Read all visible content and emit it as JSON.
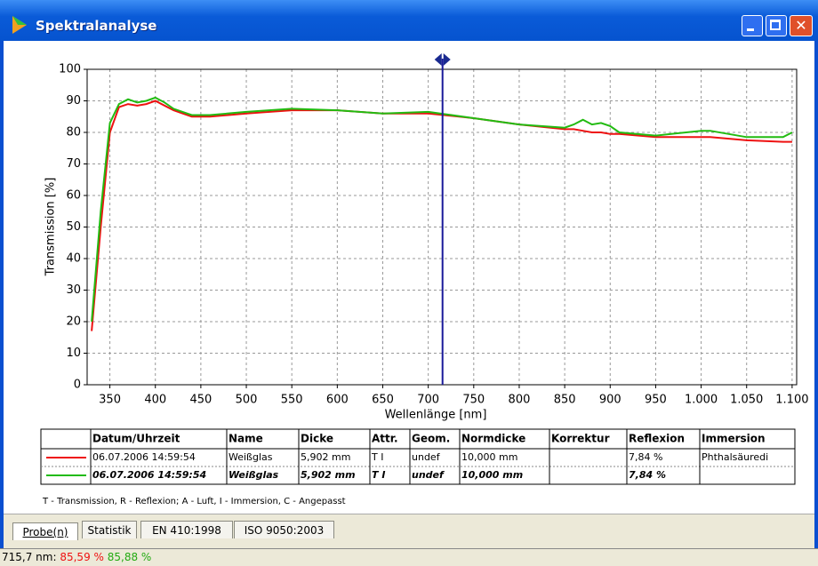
{
  "window": {
    "title": "Spektralanalyse"
  },
  "chart_data": {
    "type": "line",
    "ylabel": "Transmission [%]",
    "xlabel": "Wellenlänge [nm]",
    "x": [
      330,
      340,
      350,
      360,
      370,
      380,
      390,
      400,
      410,
      420,
      440,
      460,
      500,
      550,
      600,
      650,
      700,
      750,
      800,
      850,
      860,
      870,
      880,
      890,
      900,
      910,
      950,
      1000,
      1010,
      1050,
      1090,
      1100
    ],
    "series": [
      {
        "color": "#ee1111",
        "values": [
          17,
          50,
          80,
          88,
          89,
          88.5,
          89,
          90,
          88.5,
          87,
          85,
          85,
          86,
          87,
          87,
          86,
          86,
          84.5,
          82.5,
          81,
          81,
          80.5,
          80,
          80,
          79.5,
          79.5,
          78.5,
          78.5,
          78.5,
          77.5,
          77,
          77
        ]
      },
      {
        "color": "#22bb11",
        "values": [
          20,
          55,
          83,
          89,
          90.5,
          89.5,
          90,
          91,
          89.5,
          87.5,
          85.5,
          85.5,
          86.5,
          87.5,
          87,
          86,
          86.5,
          84.5,
          82.5,
          81.5,
          82.5,
          84,
          82.5,
          83,
          82,
          80,
          79,
          80.5,
          80.5,
          78.5,
          78.5,
          80
        ]
      }
    ],
    "xlim": [
      325,
      1105
    ],
    "ylim": [
      0,
      100
    ],
    "xticks": [
      350,
      400,
      450,
      500,
      550,
      600,
      650,
      700,
      750,
      800,
      850,
      900,
      950,
      {
        "value": 1000,
        "label": "1.000"
      },
      {
        "value": 1050,
        "label": "1.050"
      },
      {
        "value": 1100,
        "label": "1.100"
      }
    ],
    "yticks": [
      0,
      10,
      20,
      30,
      40,
      50,
      60,
      70,
      80,
      90,
      100
    ],
    "grid": true,
    "cursor_x": 715.7
  },
  "table": {
    "header": [
      "Datum/Uhrzeit",
      "Name",
      "Dicke",
      "Attr.",
      "Geom.",
      "Normdicke",
      "Korrektur",
      "Reflexion",
      "Immersion"
    ],
    "rows": [
      [
        "06.07.2006 14:59:54",
        "Weißglas",
        "5,902 mm",
        "T I",
        "undef",
        "10,000 mm",
        null,
        "7,84 %",
        "Phthalsäuredi"
      ],
      [
        "06.07.2006 14:59:54",
        "Weißglas",
        "5,902 mm",
        "T I",
        "undef",
        "10,000 mm",
        null,
        "7,84 %",
        null
      ]
    ]
  },
  "footnote": "T - Transmission, R - Reflexion; A - Luft, I - Immersion, C - Angepasst",
  "tabs": [
    "Probe(n)",
    "Statistik",
    "EN 410:1998",
    "ISO 9050:2003"
  ],
  "status": {
    "position": "715,7 nm:",
    "red": "85,59 %",
    "green": "85,88 %"
  }
}
